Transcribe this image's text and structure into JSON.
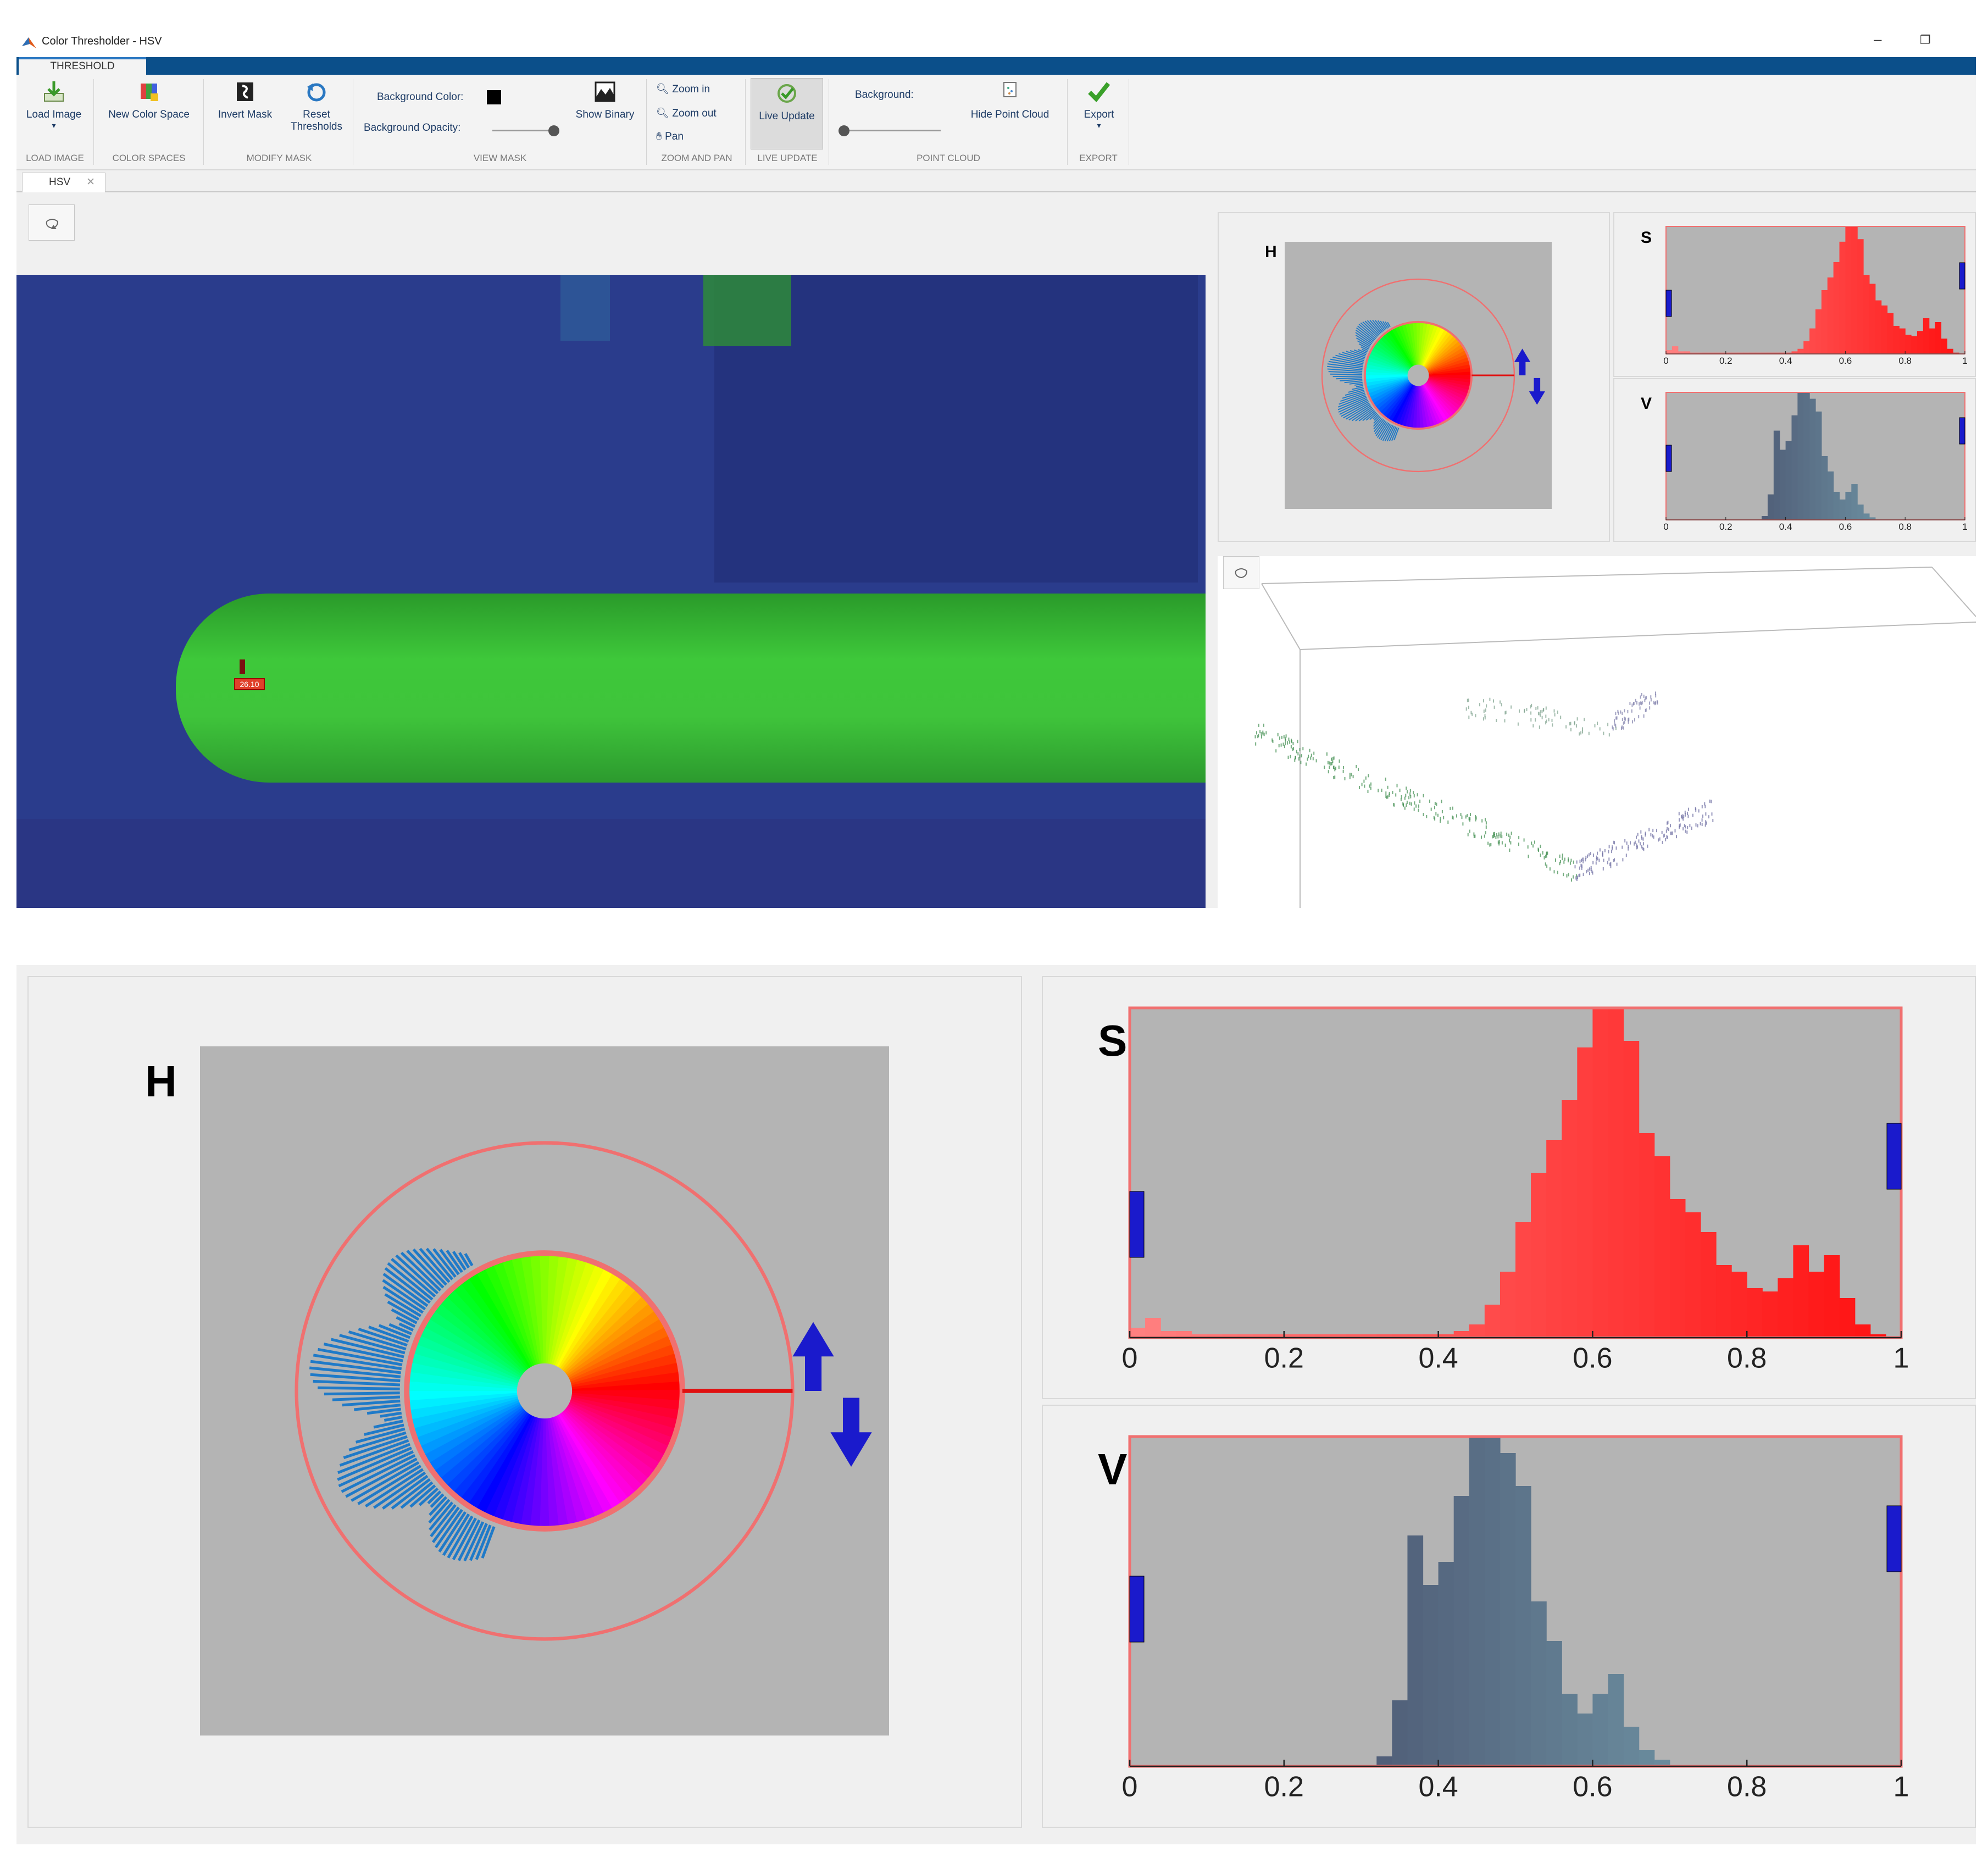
{
  "window": {
    "title": "Color Thresholder - HSV",
    "min_glyph": "–",
    "restore_glyph": "❐"
  },
  "ribbon": {
    "tab": "THRESHOLD",
    "load_image": "Load Image",
    "new_color_space": "New Color Space",
    "invert_mask": "Invert Mask",
    "reset_thresholds_1": "Reset",
    "reset_thresholds_2": "Thresholds",
    "background_color": "Background Color:",
    "background_opacity": "Background Opacity:",
    "show_binary": "Show Binary",
    "zoom_in": "Zoom in",
    "zoom_out": "Zoom out",
    "pan": "Pan",
    "live_update": "Live Update",
    "background": "Background:",
    "hide_point_cloud": "Hide Point Cloud",
    "export": "Export",
    "groups": {
      "load_image": "LOAD IMAGE",
      "color_spaces": "COLOR SPACES",
      "modify_mask": "MODIFY MASK",
      "view_mask": "VIEW MASK",
      "zoom_and_pan": "ZOOM AND PAN",
      "live_update": "LIVE UPDATE",
      "point_cloud": "POINT CLOUD",
      "export": "EXPORT"
    }
  },
  "document_tab": "HSV",
  "image": {
    "pin_label": "26.10"
  },
  "panels": {
    "h_label": "H",
    "s_label": "S",
    "v_label": "V"
  },
  "chart_data": [
    {
      "type": "bar",
      "label": "S",
      "x": [
        0.0,
        0.02,
        0.04,
        0.06,
        0.08,
        0.1,
        0.12,
        0.14,
        0.16,
        0.18,
        0.2,
        0.22,
        0.24,
        0.26,
        0.28,
        0.3,
        0.32,
        0.34,
        0.36,
        0.38,
        0.4,
        0.42,
        0.44,
        0.46,
        0.48,
        0.5,
        0.52,
        0.54,
        0.56,
        0.58,
        0.6,
        0.62,
        0.64,
        0.66,
        0.68,
        0.7,
        0.72,
        0.74,
        0.76,
        0.78,
        0.8,
        0.82,
        0.84,
        0.86,
        0.88,
        0.9,
        0.92,
        0.94,
        0.96,
        0.98
      ],
      "values": [
        0.03,
        0.06,
        0.02,
        0.02,
        0.01,
        0.01,
        0.01,
        0.01,
        0.01,
        0.01,
        0.01,
        0.01,
        0.01,
        0.01,
        0.01,
        0.01,
        0.01,
        0.01,
        0.01,
        0.01,
        0.01,
        0.02,
        0.04,
        0.1,
        0.2,
        0.35,
        0.5,
        0.6,
        0.72,
        0.88,
        1.0,
        1.0,
        0.9,
        0.62,
        0.55,
        0.42,
        0.38,
        0.32,
        0.22,
        0.2,
        0.15,
        0.14,
        0.18,
        0.28,
        0.2,
        0.25,
        0.12,
        0.04,
        0.01,
        0.0
      ],
      "xlim": [
        0,
        1
      ],
      "xticks": [
        "0",
        "0.2",
        "0.4",
        "0.6",
        "0.8",
        "1"
      ],
      "low_color": "#ff8080",
      "high_color": "#ff1010"
    },
    {
      "type": "bar",
      "label": "V",
      "x": [
        0.0,
        0.02,
        0.04,
        0.06,
        0.08,
        0.1,
        0.12,
        0.14,
        0.16,
        0.18,
        0.2,
        0.22,
        0.24,
        0.26,
        0.28,
        0.3,
        0.32,
        0.34,
        0.36,
        0.38,
        0.4,
        0.42,
        0.44,
        0.46,
        0.48,
        0.5,
        0.52,
        0.54,
        0.56,
        0.58,
        0.6,
        0.62,
        0.64,
        0.66,
        0.68,
        0.7,
        0.72,
        0.74,
        0.76,
        0.78,
        0.8,
        0.82,
        0.84,
        0.86,
        0.88,
        0.9,
        0.92,
        0.94,
        0.96,
        0.98
      ],
      "values": [
        0,
        0,
        0,
        0,
        0,
        0,
        0,
        0,
        0,
        0,
        0,
        0,
        0,
        0,
        0,
        0,
        0.03,
        0.2,
        0.7,
        0.55,
        0.62,
        0.82,
        1.0,
        1.0,
        0.95,
        0.85,
        0.5,
        0.38,
        0.22,
        0.16,
        0.22,
        0.28,
        0.12,
        0.05,
        0.02,
        0,
        0,
        0,
        0,
        0,
        0,
        0,
        0,
        0,
        0,
        0,
        0,
        0,
        0,
        0
      ],
      "xlim": [
        0,
        1
      ],
      "xticks": [
        "0",
        "0.2",
        "0.4",
        "0.6",
        "0.8",
        "1"
      ],
      "low_color": "#3a3858",
      "high_color": "#7fb0bc"
    }
  ],
  "colors": {
    "hist_bg": "#b4b4b4",
    "frame_red": "#f07070",
    "handle_blue": "#1a1acc",
    "panel_bg": "#f0f0f0",
    "ribbon_tab_blue": "#0b4f8a"
  },
  "icons": [
    "matlab-logo-icon",
    "load-image-icon",
    "color-space-icon",
    "invert-mask-icon",
    "reset-icon",
    "show-binary-icon",
    "zoom-in-icon",
    "zoom-out-icon",
    "pan-icon",
    "live-update-icon",
    "hide-point-cloud-icon",
    "export-check-icon",
    "rotate-icon"
  ]
}
